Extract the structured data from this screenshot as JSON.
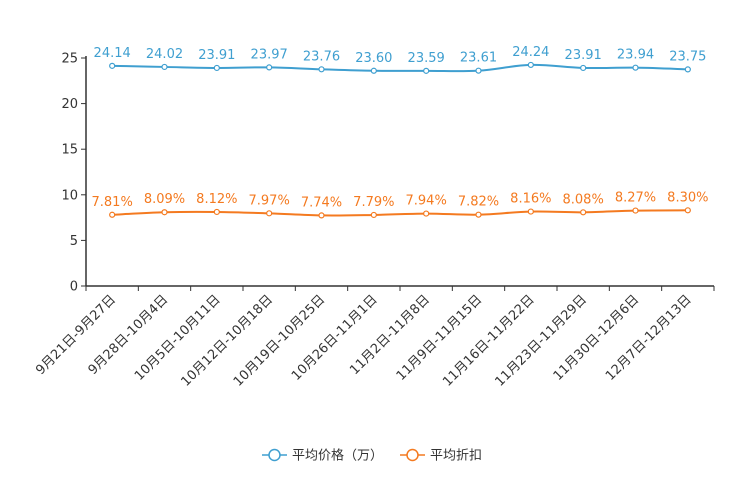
{
  "chart_data": {
    "type": "line",
    "title": "",
    "xlabel": "",
    "ylabel": "",
    "ylim": [
      0,
      25
    ],
    "yticks": [
      0,
      5,
      10,
      15,
      20,
      25
    ],
    "grid": false,
    "legend_position": "bottom-center",
    "categories": [
      "9月21日-9月27日",
      "9月28日-10月4日",
      "10月5日-10月11日",
      "10月12日-10月18日",
      "10月19日-10月25日",
      "10月26日-11月1日",
      "11月2日-11月8日",
      "11月9日-11月15日",
      "11月16日-11月22日",
      "11月23日-11月29日",
      "11月30日-12月6日",
      "12月7日-12月13日"
    ],
    "series": [
      {
        "name": "平均价格（万）",
        "color": "#3f9fd0",
        "values": [
          24.14,
          24.02,
          23.91,
          23.97,
          23.76,
          23.6,
          23.59,
          23.61,
          24.24,
          23.91,
          23.94,
          23.75
        ],
        "labels": [
          "24.14",
          "24.02",
          "23.91",
          "23.97",
          "23.76",
          "23.60",
          "23.59",
          "23.61",
          "24.24",
          "23.91",
          "23.94",
          "23.75"
        ]
      },
      {
        "name": "平均折扣",
        "color": "#f47a20",
        "values": [
          7.81,
          8.09,
          8.12,
          7.97,
          7.74,
          7.79,
          7.94,
          7.82,
          8.16,
          8.08,
          8.27,
          8.3
        ],
        "labels": [
          "7.81%",
          "8.09%",
          "8.12%",
          "7.97%",
          "7.74%",
          "7.79%",
          "7.94%",
          "7.82%",
          "8.16%",
          "8.08%",
          "8.27%",
          "8.30%"
        ]
      }
    ]
  }
}
